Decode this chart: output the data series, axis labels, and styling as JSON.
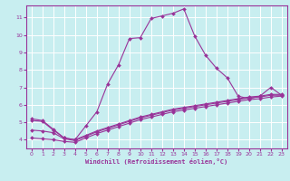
{
  "xlabel": "Windchill (Refroidissement éolien,°C)",
  "bg_color": "#c8eef0",
  "line_color": "#993399",
  "grid_color": "#ffffff",
  "xlim": [
    -0.5,
    23.5
  ],
  "ylim": [
    3.5,
    11.7
  ],
  "yticks": [
    4,
    5,
    6,
    7,
    8,
    9,
    10,
    11
  ],
  "xticks": [
    0,
    1,
    2,
    3,
    4,
    5,
    6,
    7,
    8,
    9,
    10,
    11,
    12,
    13,
    14,
    15,
    16,
    17,
    18,
    19,
    20,
    21,
    22,
    23
  ],
  "series": [
    {
      "x": [
        0,
        1,
        2,
        3,
        4,
        5,
        6,
        7,
        8,
        9,
        10,
        11,
        12,
        13,
        14,
        15,
        16,
        17,
        18,
        19,
        20,
        21,
        22,
        23
      ],
      "y": [
        5.2,
        5.1,
        4.6,
        4.1,
        4.0,
        4.8,
        5.6,
        7.2,
        8.3,
        9.8,
        9.85,
        10.95,
        11.1,
        11.25,
        11.5,
        9.95,
        8.85,
        8.1,
        7.55,
        6.5,
        6.35,
        6.5,
        7.0,
        6.55
      ]
    },
    {
      "x": [
        0,
        1,
        2,
        3,
        4,
        5,
        6,
        7,
        8,
        9,
        10,
        11,
        12,
        13,
        14,
        15,
        16,
        17,
        18,
        19,
        20,
        21,
        22,
        23
      ],
      "y": [
        5.1,
        5.05,
        4.55,
        4.1,
        4.0,
        4.25,
        4.5,
        4.7,
        4.9,
        5.1,
        5.3,
        5.45,
        5.6,
        5.75,
        5.85,
        5.95,
        6.05,
        6.15,
        6.25,
        6.35,
        6.45,
        6.5,
        6.6,
        6.6
      ]
    },
    {
      "x": [
        0,
        1,
        2,
        3,
        4,
        5,
        6,
        7,
        8,
        9,
        10,
        11,
        12,
        13,
        14,
        15,
        16,
        17,
        18,
        19,
        20,
        21,
        22,
        23
      ],
      "y": [
        4.55,
        4.5,
        4.4,
        4.05,
        3.95,
        4.2,
        4.45,
        4.65,
        4.85,
        5.05,
        5.25,
        5.4,
        5.55,
        5.7,
        5.8,
        5.9,
        6.0,
        6.1,
        6.2,
        6.3,
        6.4,
        6.45,
        6.55,
        6.55
      ]
    },
    {
      "x": [
        0,
        1,
        2,
        3,
        4,
        5,
        6,
        7,
        8,
        9,
        10,
        11,
        12,
        13,
        14,
        15,
        16,
        17,
        18,
        19,
        20,
        21,
        22,
        23
      ],
      "y": [
        4.1,
        4.05,
        4.0,
        3.9,
        3.85,
        4.1,
        4.35,
        4.55,
        4.75,
        4.95,
        5.15,
        5.3,
        5.45,
        5.6,
        5.7,
        5.8,
        5.9,
        6.0,
        6.1,
        6.2,
        6.3,
        6.35,
        6.45,
        6.5
      ]
    }
  ]
}
